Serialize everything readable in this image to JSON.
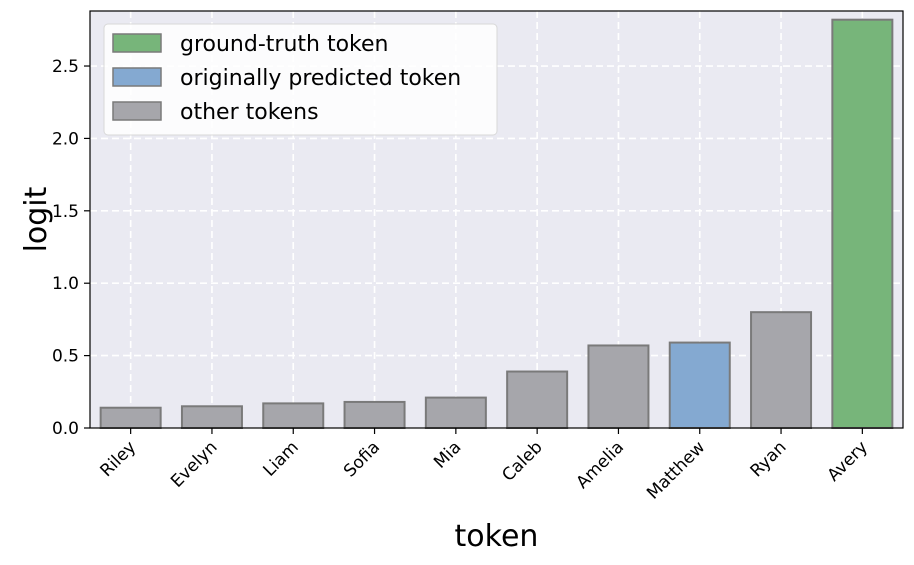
{
  "chart_data": {
    "type": "bar",
    "categories": [
      "Riley",
      "Evelyn",
      "Liam",
      "Sofia",
      "Mia",
      "Caleb",
      "Amelia",
      "Matthew",
      "Ryan",
      "Avery"
    ],
    "values": [
      0.14,
      0.15,
      0.17,
      0.18,
      0.21,
      0.39,
      0.57,
      0.59,
      0.8,
      2.82
    ],
    "bar_groups": [
      "other",
      "other",
      "other",
      "other",
      "other",
      "other",
      "other",
      "predicted",
      "other",
      "truth"
    ],
    "xlabel": "token",
    "ylabel": "logit",
    "ylim": [
      0,
      2.88
    ],
    "yticks": [
      "0.0",
      "0.5",
      "1.0",
      "1.5",
      "2.0",
      "2.5"
    ],
    "grid": true,
    "legend_position": "top-left",
    "legend": [
      {
        "key": "truth",
        "label": "ground-truth token",
        "color": "#77b57a"
      },
      {
        "key": "predicted",
        "label": "originally predicted token",
        "color": "#84a9d1"
      },
      {
        "key": "other",
        "label": "other tokens",
        "color": "#a6a6ab"
      }
    ],
    "colors": {
      "plot_background": "#eaeaf2",
      "bar_edge": "#7a7a7a",
      "grid": "#ffffff"
    }
  }
}
